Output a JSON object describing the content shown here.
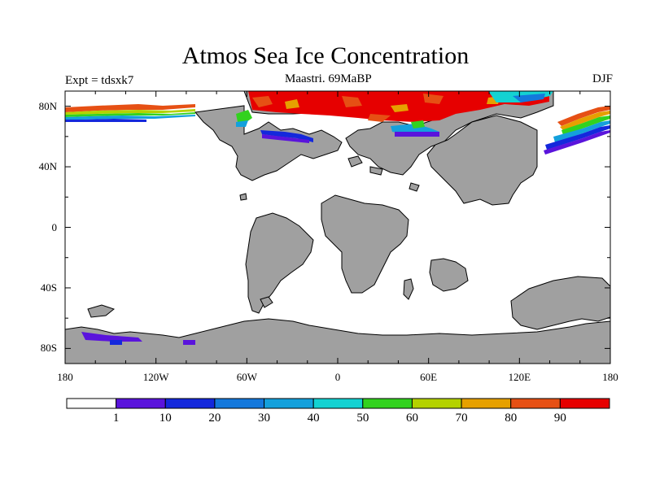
{
  "title": "Atmos Sea Ice Concentration",
  "left_subtitle": "Expt = tdsxk7",
  "center_subtitle": "Maastri.  69MaBP",
  "right_subtitle": "DJF",
  "lat_ticks": [
    "80N",
    "40N",
    "0",
    "40S",
    "80S"
  ],
  "lat_values": [
    80,
    40,
    0,
    -40,
    -80
  ],
  "lon_ticks": [
    "180",
    "120W",
    "60W",
    "0",
    "60E",
    "120E",
    "180"
  ],
  "lon_values": [
    -180,
    -120,
    -60,
    0,
    60,
    120,
    180
  ],
  "legend": {
    "labels": [
      "1",
      "10",
      "20",
      "30",
      "40",
      "50",
      "60",
      "70",
      "80",
      "90"
    ],
    "colors": [
      "#ffffff",
      "#5a14dc",
      "#1428dc",
      "#1478dc",
      "#14a0dc",
      "#14d2d2",
      "#32d21e",
      "#b4d200",
      "#e6a000",
      "#e65014",
      "#e60000"
    ]
  },
  "colors": {
    "land": "#a0a0a0",
    "ocean": "#ffffff"
  }
}
